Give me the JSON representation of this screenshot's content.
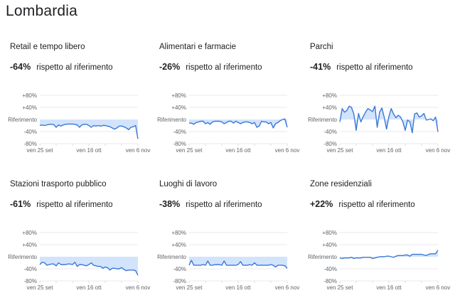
{
  "page": {
    "title": "Lombardia"
  },
  "common": {
    "suffix": "rispetto al riferimento",
    "y_ticks": [
      {
        "label": "+80%",
        "value": 80
      },
      {
        "label": "+40%",
        "value": 40
      },
      {
        "label": "Riferimento",
        "value": 0
      },
      {
        "label": "-40%",
        "value": -40
      },
      {
        "label": "-80%",
        "value": -80
      }
    ],
    "x_labels": [
      {
        "label": "ven 25 set",
        "day": 0
      },
      {
        "label": "ven 16 ott",
        "day": 21
      },
      {
        "label": "ven 6 nov",
        "day": 42
      }
    ],
    "colors": {
      "line": "#3a78d6",
      "fill": "#d2e3fc",
      "grid": "#e8eaed",
      "baseline": "#dadce0"
    }
  },
  "panels": [
    {
      "title": "Retail e tempo libero",
      "value": "-64%"
    },
    {
      "title": "Alimentari e farmacie",
      "value": "-26%"
    },
    {
      "title": "Parchi",
      "value": "-41%"
    },
    {
      "title": "Stazioni trasporto pubblico",
      "value": "-61%"
    },
    {
      "title": "Luoghi di lavoro",
      "value": "-38%"
    },
    {
      "title": "Zone residenziali",
      "value": "+22%"
    }
  ],
  "chart_data": [
    {
      "type": "area",
      "title": "Retail e tempo libero",
      "xlabel": "",
      "ylabel": "% rispetto al riferimento",
      "x_tick_labels": [
        "ven 25 set",
        "ven 16 ott",
        "ven 6 nov"
      ],
      "y_tick_labels": [
        "+80%",
        "+40%",
        "Riferimento",
        "-40%",
        "-80%"
      ],
      "ylim": [
        -80,
        80
      ],
      "grid": true,
      "x": [
        0,
        1,
        2,
        3,
        4,
        5,
        6,
        7,
        8,
        9,
        10,
        11,
        12,
        13,
        14,
        15,
        16,
        17,
        18,
        19,
        20,
        21,
        22,
        23,
        24,
        25,
        26,
        27,
        28,
        29,
        30,
        31,
        32,
        33,
        34,
        35,
        36,
        37,
        38,
        39,
        40,
        41,
        42
      ],
      "values": [
        -20,
        -18,
        -20,
        -18,
        -16,
        -16,
        -17,
        -26,
        -18,
        -22,
        -18,
        -16,
        -15,
        -15,
        -15,
        -16,
        -18,
        -26,
        -18,
        -16,
        -16,
        -20,
        -26,
        -20,
        -22,
        -20,
        -22,
        -20,
        -20,
        -22,
        -24,
        -28,
        -32,
        -28,
        -22,
        -22,
        -24,
        -28,
        -34,
        -26,
        -24,
        -20,
        -64
      ],
      "headline": "-64%"
    },
    {
      "type": "area",
      "title": "Alimentari e farmacie",
      "xlabel": "",
      "ylabel": "% rispetto al riferimento",
      "x_tick_labels": [
        "ven 25 set",
        "ven 16 ott",
        "ven 6 nov"
      ],
      "y_tick_labels": [
        "+80%",
        "+40%",
        "Riferimento",
        "-40%",
        "-80%"
      ],
      "ylim": [
        -80,
        80
      ],
      "grid": true,
      "x": [
        0,
        1,
        2,
        3,
        4,
        5,
        6,
        7,
        8,
        9,
        10,
        11,
        12,
        13,
        14,
        15,
        16,
        17,
        18,
        19,
        20,
        21,
        22,
        23,
        24,
        25,
        26,
        27,
        28,
        29,
        30,
        31,
        32,
        33,
        34,
        35,
        36,
        37,
        38,
        39,
        40,
        41,
        42
      ],
      "values": [
        -12,
        -12,
        -16,
        -10,
        -8,
        -6,
        -6,
        -14,
        -10,
        -16,
        -8,
        -6,
        -6,
        -6,
        -8,
        -14,
        -10,
        -6,
        -6,
        -12,
        -6,
        -10,
        -14,
        -10,
        -8,
        -8,
        -10,
        -14,
        -10,
        -26,
        -22,
        -6,
        -8,
        -8,
        -14,
        -10,
        -28,
        -14,
        -10,
        -4,
        0,
        2,
        -26
      ],
      "headline": "-26%"
    },
    {
      "type": "area",
      "title": "Parchi",
      "xlabel": "",
      "ylabel": "% rispetto al riferimento",
      "x_tick_labels": [
        "ven 25 set",
        "ven 16 ott",
        "ven 6 nov"
      ],
      "y_tick_labels": [
        "+80%",
        "+40%",
        "Riferimento",
        "-40%",
        "-80%"
      ],
      "ylim": [
        -80,
        80
      ],
      "grid": true,
      "x": [
        0,
        1,
        2,
        3,
        4,
        5,
        6,
        7,
        8,
        9,
        10,
        11,
        12,
        13,
        14,
        15,
        16,
        17,
        18,
        19,
        20,
        21,
        22,
        23,
        24,
        25,
        26,
        27,
        28,
        29,
        30,
        31,
        32,
        33,
        34,
        35,
        36,
        37,
        38,
        39,
        40,
        41,
        42
      ],
      "values": [
        -8,
        36,
        24,
        30,
        44,
        40,
        18,
        -36,
        20,
        -8,
        10,
        24,
        36,
        32,
        26,
        44,
        -26,
        24,
        38,
        8,
        -32,
        10,
        36,
        18,
        6,
        14,
        8,
        -8,
        -36,
        -2,
        -8,
        -44,
        18,
        22,
        8,
        12,
        20,
        -2,
        0,
        2,
        -4,
        8,
        -41
      ],
      "headline": "-41%"
    },
    {
      "type": "area",
      "title": "Stazioni trasporto pubblico",
      "xlabel": "",
      "ylabel": "% rispetto al riferimento",
      "x_tick_labels": [
        "ven 25 set",
        "ven 16 ott",
        "ven 6 nov"
      ],
      "y_tick_labels": [
        "+80%",
        "+40%",
        "Riferimento",
        "-40%",
        "-80%"
      ],
      "ylim": [
        -80,
        80
      ],
      "grid": true,
      "x": [
        0,
        1,
        2,
        3,
        4,
        5,
        6,
        7,
        8,
        9,
        10,
        11,
        12,
        13,
        14,
        15,
        16,
        17,
        18,
        19,
        20,
        21,
        22,
        23,
        24,
        25,
        26,
        27,
        28,
        29,
        30,
        31,
        32,
        33,
        34,
        35,
        36,
        37,
        38,
        39,
        40,
        41,
        42
      ],
      "values": [
        -26,
        -18,
        -20,
        -28,
        -26,
        -24,
        -24,
        -30,
        -20,
        -26,
        -26,
        -26,
        -24,
        -24,
        -26,
        -18,
        -32,
        -26,
        -26,
        -28,
        -30,
        -26,
        -20,
        -28,
        -30,
        -32,
        -32,
        -38,
        -34,
        -36,
        -44,
        -38,
        -38,
        -40,
        -40,
        -36,
        -42,
        -46,
        -44,
        -44,
        -44,
        -46,
        -61
      ],
      "headline": "-61%"
    },
    {
      "type": "area",
      "title": "Luoghi di lavoro",
      "xlabel": "",
      "ylabel": "% rispetto al riferimento",
      "x_tick_labels": [
        "ven 25 set",
        "ven 16 ott",
        "ven 6 nov"
      ],
      "y_tick_labels": [
        "+80%",
        "+40%",
        "Riferimento",
        "-40%",
        "-80%"
      ],
      "ylim": [
        -80,
        80
      ],
      "grid": true,
      "x": [
        0,
        1,
        2,
        3,
        4,
        5,
        6,
        7,
        8,
        9,
        10,
        11,
        12,
        13,
        14,
        15,
        16,
        17,
        18,
        19,
        20,
        21,
        22,
        23,
        24,
        25,
        26,
        27,
        28,
        29,
        30,
        31,
        32,
        33,
        34,
        35,
        36,
        37,
        38,
        39,
        40,
        41,
        42
      ],
      "values": [
        -28,
        -12,
        -28,
        -28,
        -28,
        -28,
        -26,
        -28,
        -14,
        -28,
        -28,
        -26,
        -26,
        -26,
        -28,
        -14,
        -28,
        -28,
        -28,
        -28,
        -28,
        -26,
        -16,
        -28,
        -28,
        -28,
        -26,
        -28,
        -20,
        -28,
        -28,
        -28,
        -28,
        -28,
        -28,
        -26,
        -28,
        -34,
        -28,
        -28,
        -28,
        -30,
        -38
      ],
      "headline": "-38%"
    },
    {
      "type": "area",
      "title": "Zone residenziali",
      "xlabel": "",
      "ylabel": "% rispetto al riferimento",
      "x_tick_labels": [
        "ven 25 set",
        "ven 16 ott",
        "ven 6 nov"
      ],
      "y_tick_labels": [
        "+80%",
        "+40%",
        "Riferimento",
        "-40%",
        "-80%"
      ],
      "ylim": [
        -80,
        80
      ],
      "grid": true,
      "x": [
        0,
        1,
        2,
        3,
        4,
        5,
        6,
        7,
        8,
        9,
        10,
        11,
        12,
        13,
        14,
        15,
        16,
        17,
        18,
        19,
        20,
        21,
        22,
        23,
        24,
        25,
        26,
        27,
        28,
        29,
        30,
        31,
        32,
        33,
        34,
        35,
        36,
        37,
        38,
        39,
        40,
        41,
        42
      ],
      "values": [
        -4,
        -6,
        -4,
        -4,
        -4,
        -2,
        -6,
        -4,
        -4,
        -4,
        -2,
        -2,
        -2,
        -2,
        -6,
        -4,
        -2,
        0,
        0,
        0,
        2,
        2,
        0,
        -2,
        2,
        4,
        4,
        4,
        6,
        6,
        2,
        8,
        8,
        8,
        8,
        8,
        6,
        4,
        8,
        10,
        10,
        10,
        22
      ],
      "headline": "+22%"
    }
  ]
}
